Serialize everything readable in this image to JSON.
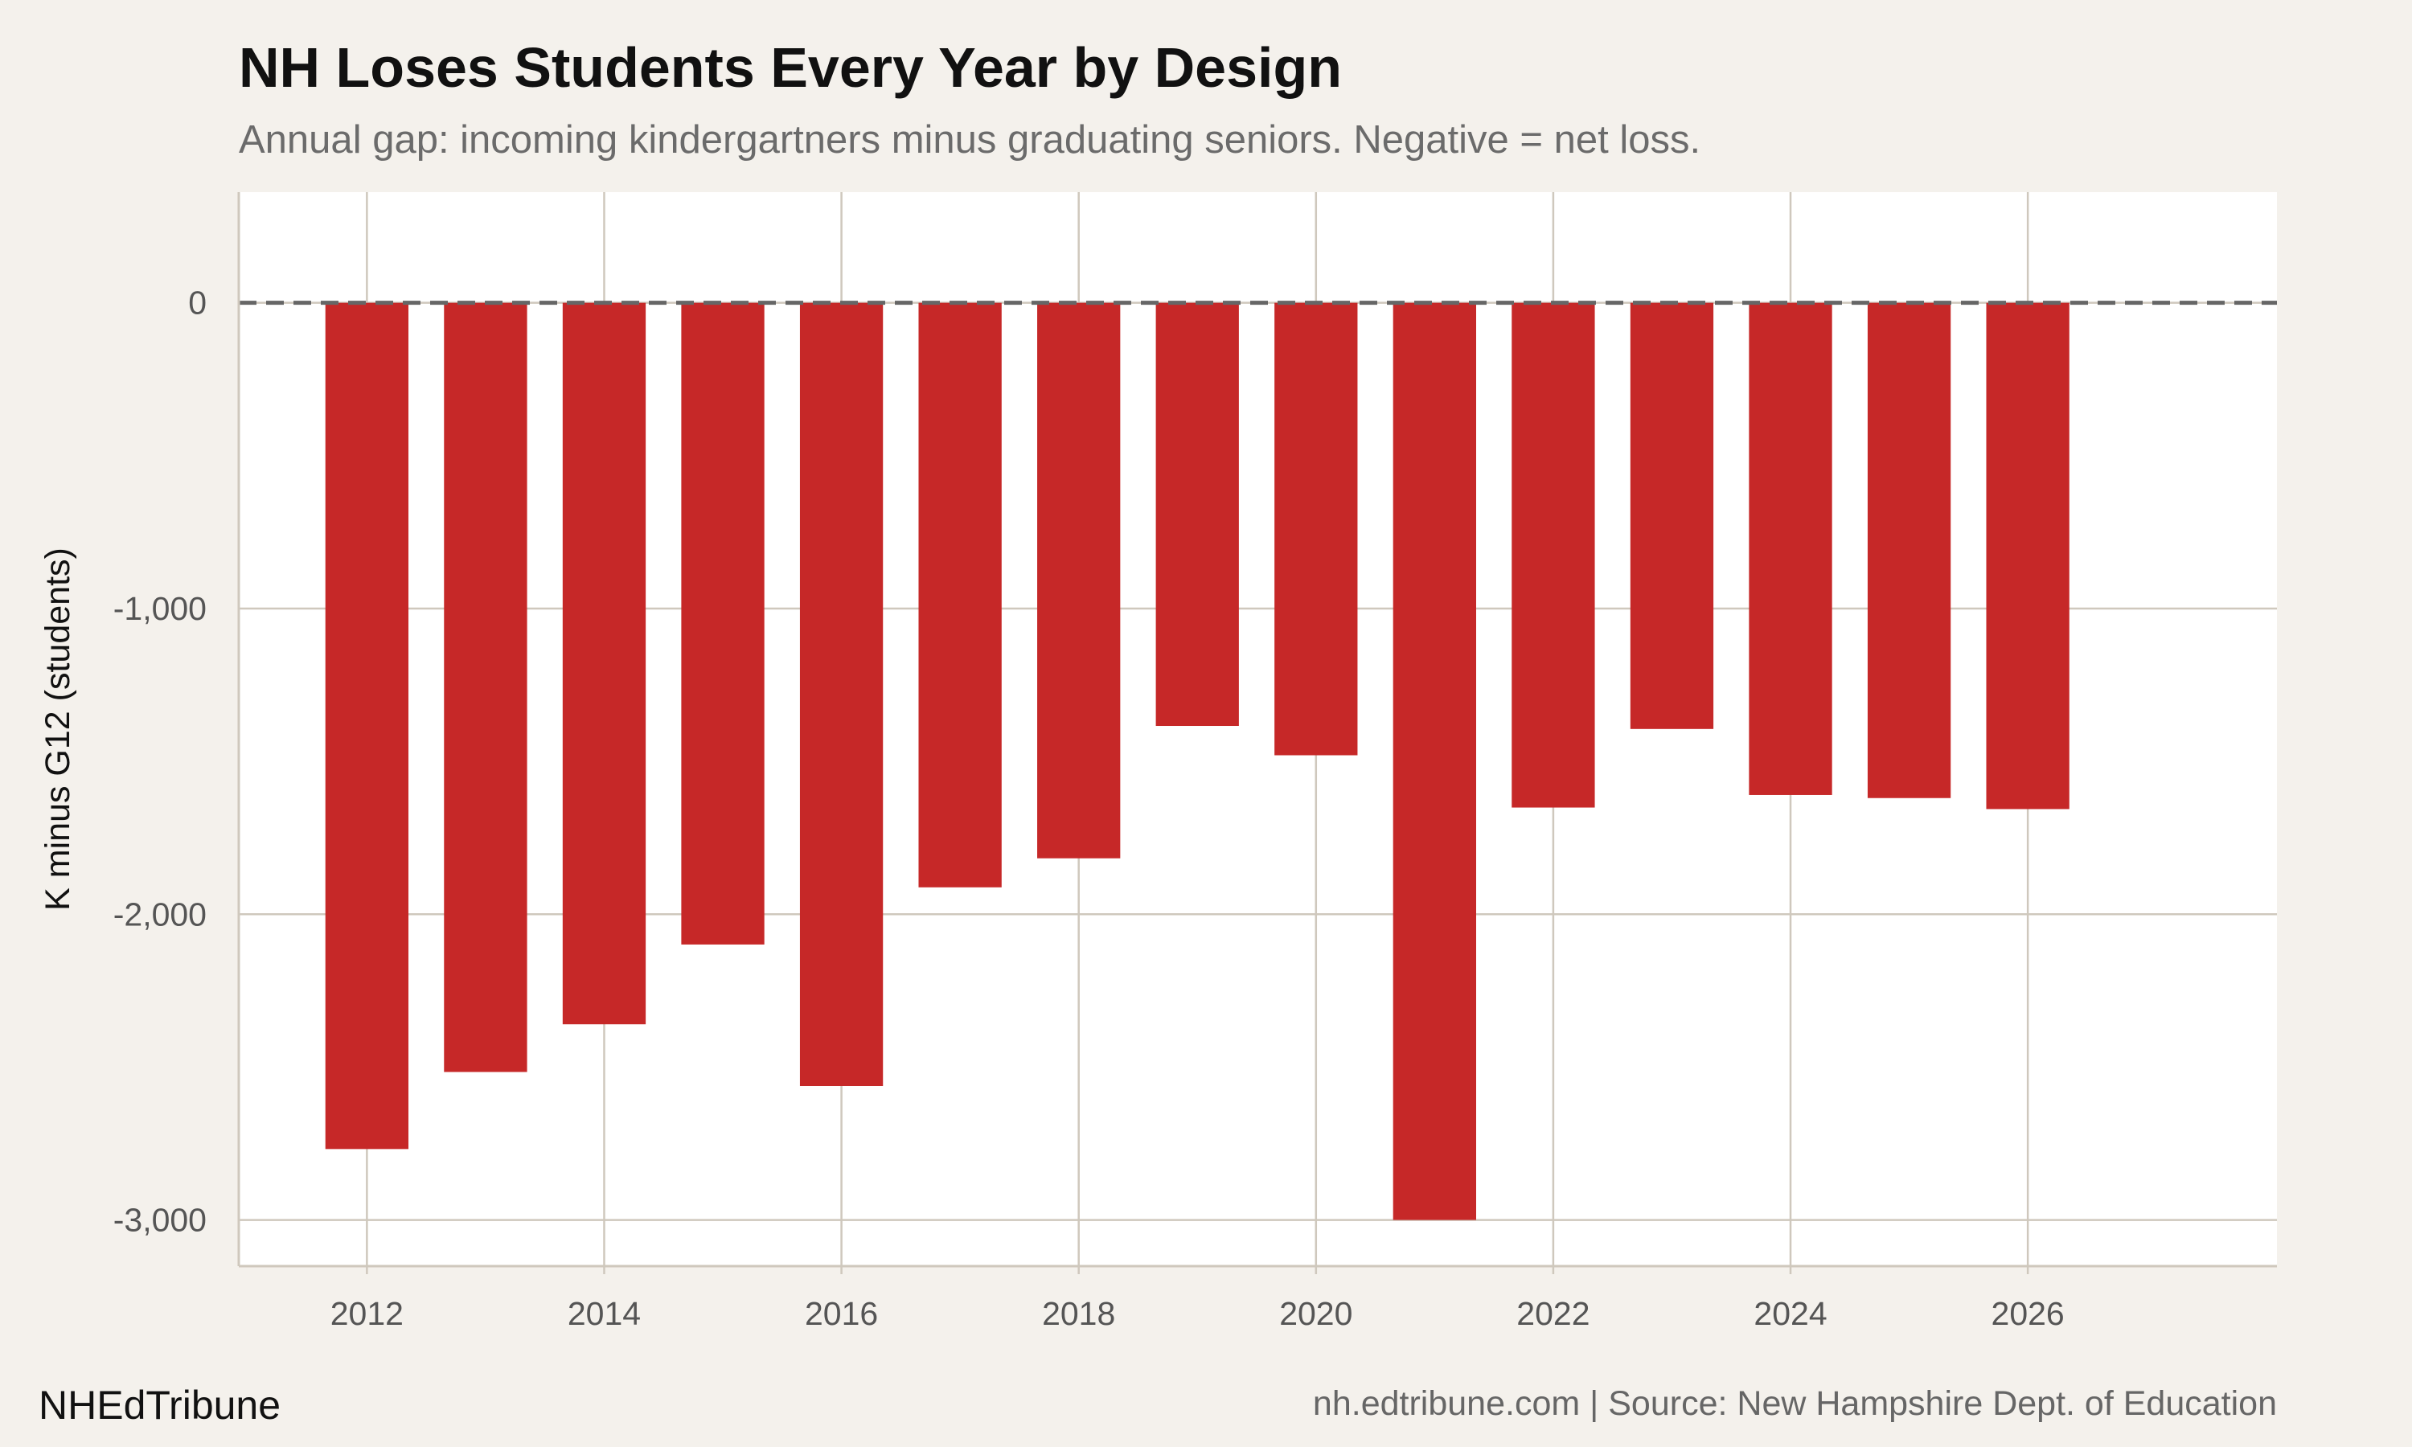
{
  "chart_data": {
    "type": "bar",
    "title": "NH Loses Students Every Year by Design",
    "subtitle": "Annual gap: incoming kindergartners minus graduating seniors. Negative = net loss.",
    "xlabel": "",
    "ylabel": "K minus G12 (students)",
    "categories": [
      2012,
      2013,
      2014,
      2015,
      2016,
      2017,
      2018,
      2019,
      2020,
      2021,
      2022,
      2023,
      2024,
      2025,
      2026
    ],
    "values": [
      -2768,
      -2516,
      -2360,
      -2099,
      -2562,
      -1912,
      -1817,
      -1384,
      -1480,
      -3000,
      -1651,
      -1394,
      -1610,
      -1620,
      -1656
    ],
    "xlim": [
      2010.92,
      2028.1
    ],
    "ylim": [
      -3151,
      362
    ],
    "x_ticks": [
      2012,
      2014,
      2016,
      2018,
      2020,
      2022,
      2024,
      2026
    ],
    "x_tick_labels": [
      "2012",
      "2014",
      "2016",
      "2018",
      "2020",
      "2022",
      "2024",
      "2026"
    ],
    "y_ticks": [
      0,
      -1000,
      -2000,
      -3000
    ],
    "y_tick_labels": [
      "0",
      "-1,000",
      "-2,000",
      "-3,000"
    ],
    "reference_line": {
      "y": 0,
      "style": "dashed"
    },
    "grid": true,
    "colors": {
      "bar": "#c62828",
      "background": "#f4f1ec",
      "panel": "#ffffff",
      "grid": "#cfc8bd",
      "reference": "#666666"
    }
  },
  "footer": {
    "brand": "NHEdTribune",
    "source": "nh.edtribune.com | Source: New Hampshire Dept. of Education"
  }
}
